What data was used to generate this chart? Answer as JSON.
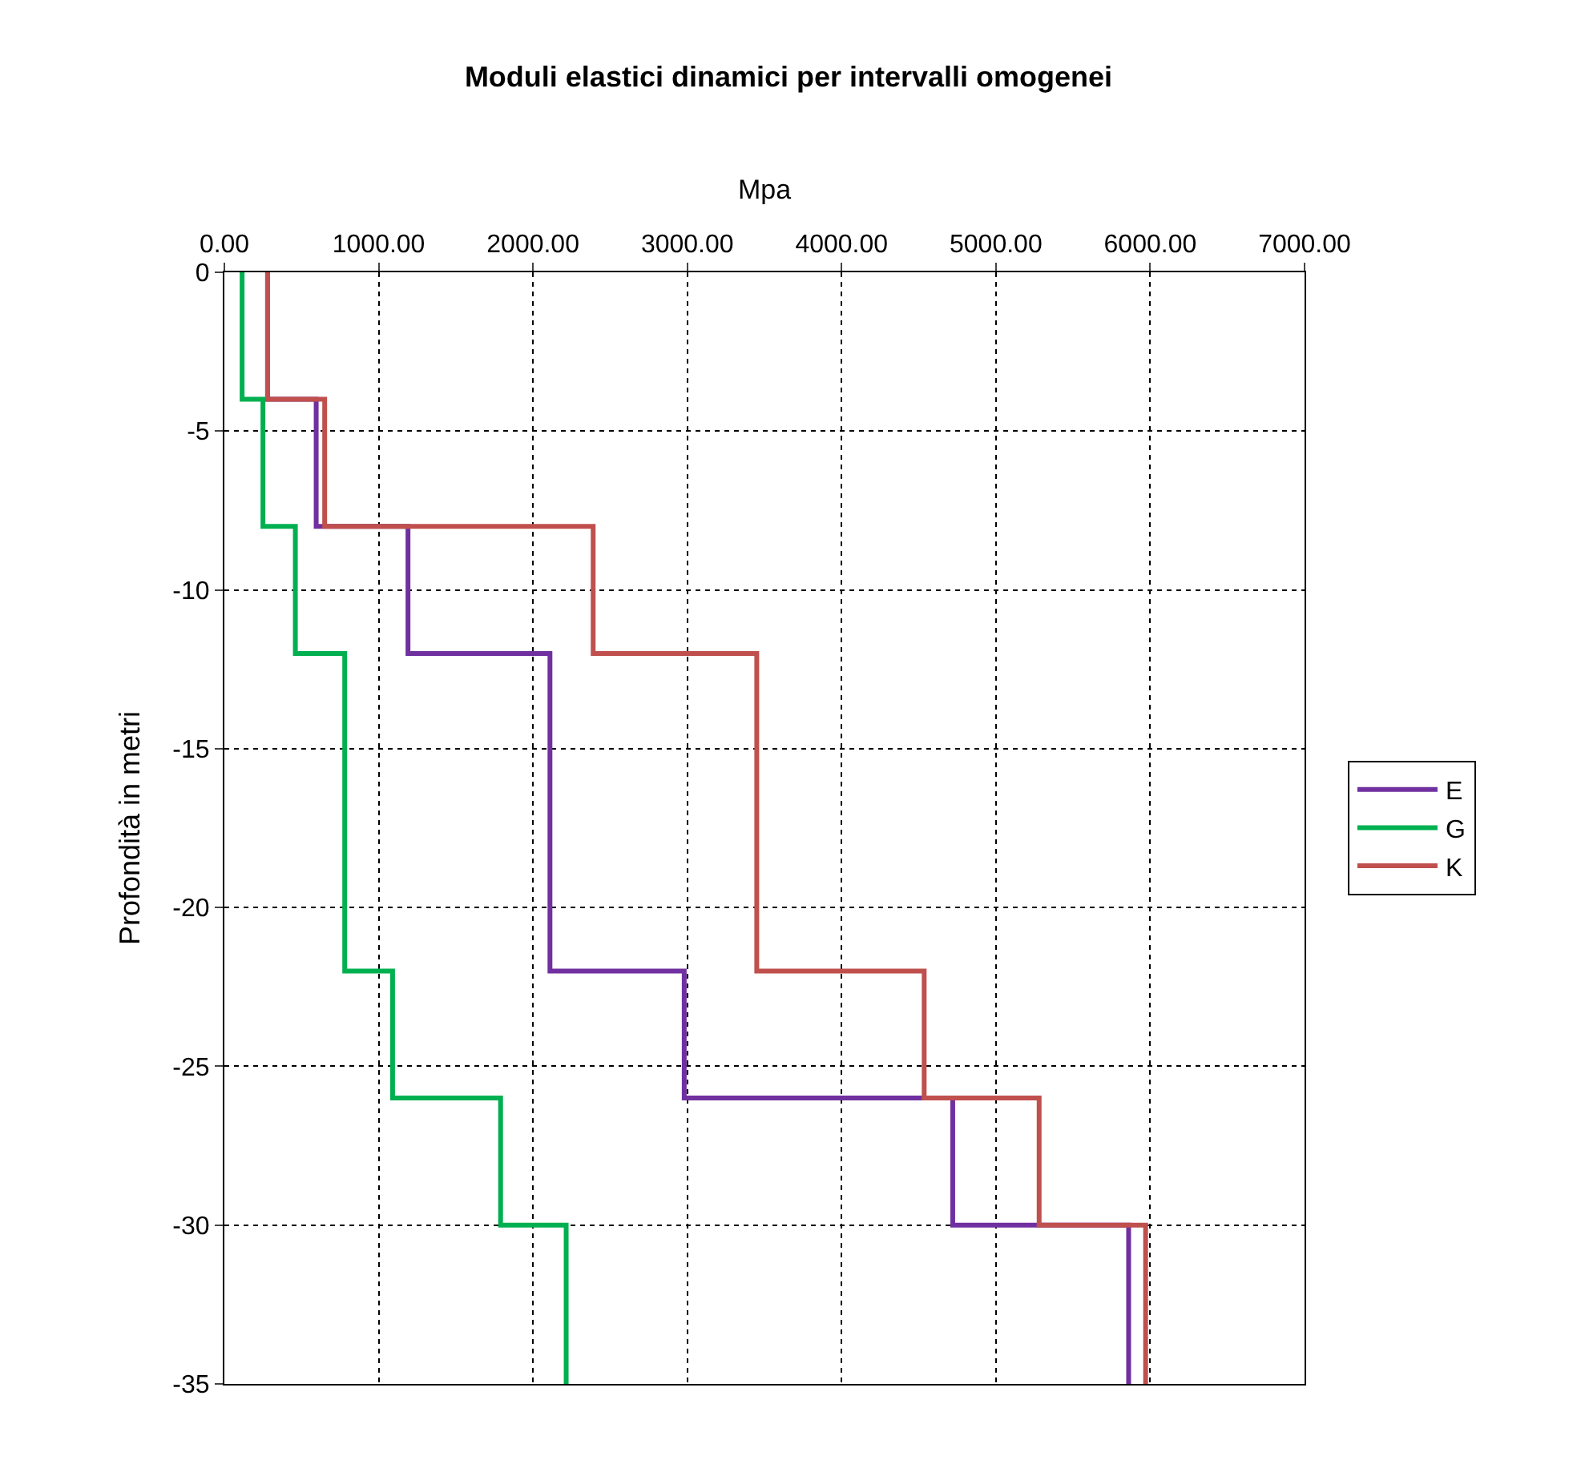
{
  "chart_data": {
    "type": "line",
    "title": "Moduli elastici dinamici per intervalli omogenei",
    "xlabel": "Mpa",
    "ylabel": "Profondità in metri",
    "series": [
      {
        "name": "E",
        "color": "#7030a0",
        "x": [
          280,
          280,
          595,
          595,
          1190,
          1190,
          2110,
          2110,
          2980,
          2980,
          4720,
          4720,
          5860,
          5860
        ],
        "values": [
          0,
          -4,
          -4,
          -8,
          -8,
          -12,
          -12,
          -22,
          -22,
          -26,
          -26,
          -30,
          -30,
          -35
        ]
      },
      {
        "name": "G",
        "color": "#00b050",
        "x": [
          115,
          115,
          250,
          250,
          460,
          460,
          780,
          780,
          1090,
          1090,
          1790,
          1790,
          2215,
          2215
        ],
        "values": [
          0,
          -4,
          -4,
          -8,
          -8,
          -12,
          -12,
          -22,
          -22,
          -26,
          -26,
          -30,
          -30,
          -35
        ]
      },
      {
        "name": "K",
        "color": "#c0504d",
        "x": [
          280,
          280,
          650,
          650,
          2390,
          2390,
          3450,
          3450,
          4535,
          4535,
          5280,
          5280,
          5970,
          5970
        ],
        "values": [
          0,
          -4,
          -4,
          -8,
          -8,
          -12,
          -12,
          -22,
          -22,
          -26,
          -26,
          -30,
          -30,
          -35
        ]
      }
    ],
    "xlim": [
      0,
      7000
    ],
    "xticks": [
      {
        "value": 0,
        "label": "0.00"
      },
      {
        "value": 1000,
        "label": "1000.00"
      },
      {
        "value": 2000,
        "label": "2000.00"
      },
      {
        "value": 3000,
        "label": "3000.00"
      },
      {
        "value": 4000,
        "label": "4000.00"
      },
      {
        "value": 5000,
        "label": "5000.00"
      },
      {
        "value": 6000,
        "label": "6000.00"
      },
      {
        "value": 7000,
        "label": "7000.00"
      }
    ],
    "ylim": [
      -35,
      0
    ],
    "yticks": [
      -35,
      -30,
      -25,
      -20,
      -15,
      -10,
      -5,
      0
    ],
    "grid": true,
    "legend": "right",
    "marker": "none",
    "line_style": "solid"
  }
}
